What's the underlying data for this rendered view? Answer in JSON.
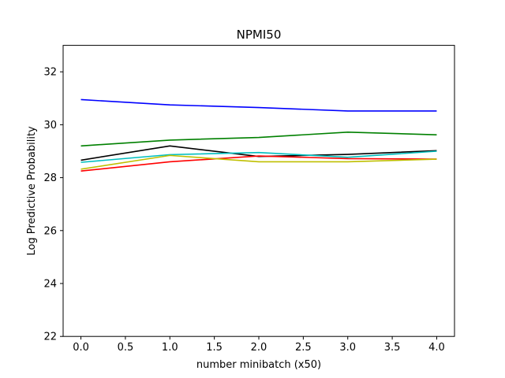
{
  "chart_data": {
    "type": "line",
    "title": "NPMI50",
    "xlabel": "number minibatch (x50)",
    "ylabel": "Log Predictive Probability",
    "xlim": [
      -0.2,
      4.2
    ],
    "ylim": [
      22,
      33
    ],
    "xticks": [
      0.0,
      0.5,
      1.0,
      1.5,
      2.0,
      2.5,
      3.0,
      3.5,
      4.0
    ],
    "xtick_labels": [
      "0.0",
      "0.5",
      "1.0",
      "1.5",
      "2.0",
      "2.5",
      "3.0",
      "3.5",
      "4.0"
    ],
    "yticks": [
      22,
      24,
      26,
      28,
      30,
      32
    ],
    "ytick_labels": [
      "22",
      "24",
      "26",
      "28",
      "30",
      "32"
    ],
    "grid": false,
    "x": [
      0,
      1,
      2,
      3,
      4
    ],
    "series": [
      {
        "color": "#0000ff",
        "values": [
          30.95,
          30.75,
          30.65,
          30.52,
          30.52
        ]
      },
      {
        "color": "#008000",
        "values": [
          29.2,
          29.42,
          29.52,
          29.72,
          29.62
        ]
      },
      {
        "color": "#000000",
        "values": [
          28.66,
          29.2,
          28.8,
          28.88,
          29.02
        ]
      },
      {
        "color": "#00bfbf",
        "values": [
          28.58,
          28.87,
          28.95,
          28.77,
          29.0
        ]
      },
      {
        "color": "#ff0000",
        "values": [
          28.25,
          28.6,
          28.82,
          28.72,
          28.7
        ]
      },
      {
        "color": "#bfbf00",
        "values": [
          28.32,
          28.84,
          28.6,
          28.6,
          28.7
        ]
      }
    ]
  }
}
